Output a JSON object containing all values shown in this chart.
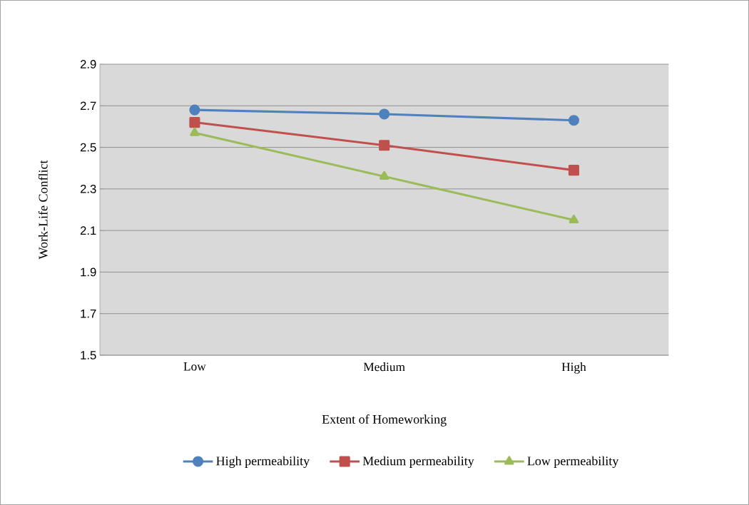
{
  "chart_data": {
    "type": "line",
    "xlabel": "Extent of Homeworking",
    "ylabel": "Work-Life Conflict",
    "categories": [
      "Low",
      "Medium",
      "High"
    ],
    "series": [
      {
        "name": "High permeability",
        "color": "#4f81bd",
        "marker": "circle",
        "values": [
          2.68,
          2.66,
          2.63
        ]
      },
      {
        "name": "Medium permeability",
        "color": "#c0504d",
        "marker": "square",
        "values": [
          2.62,
          2.51,
          2.39
        ]
      },
      {
        "name": "Low permeability",
        "color": "#9bbb59",
        "marker": "triangle",
        "values": [
          2.57,
          2.36,
          2.15
        ]
      }
    ],
    "ylim": [
      1.5,
      2.9
    ],
    "yticks": [
      1.5,
      1.7,
      1.9,
      2.1,
      2.3,
      2.5,
      2.7,
      2.9
    ],
    "grid": "y",
    "legend": "bottom",
    "line_style": "solid"
  }
}
